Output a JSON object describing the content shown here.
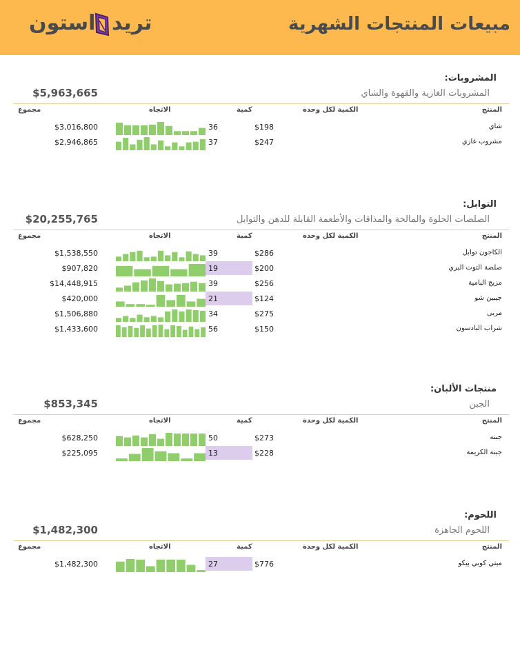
{
  "header": {
    "title": "مبيعات المنتجات الشهرية",
    "logo_text_left": "استون",
    "logo_text_right": "تريد",
    "accent": "#fdb94e"
  },
  "columns": {
    "total": "مجموع",
    "trend": "الاتجاه",
    "qty": "كمية",
    "price": "الكمية لكل وحدة",
    "product": "المنتج"
  },
  "colors": {
    "spark": "#8fce6a",
    "low_qty": "#dccdec"
  },
  "sections": [
    {
      "name": "المشروبات:",
      "description": "المشروبات الغازية والقهوة والشاي",
      "total": "$5,963,665",
      "rows": [
        {
          "total": "$3,016,800",
          "qty": "36",
          "price": "$198",
          "product": "شاي",
          "low": false,
          "trend": [
            0.95,
            0.75,
            0.75,
            0.75,
            0.8,
            1.0,
            0.7,
            0.3,
            0.3,
            0.3,
            0.55
          ]
        },
        {
          "total": "$2,946,865",
          "qty": "37",
          "price": "$247",
          "product": "مشروب غازي",
          "low": false,
          "trend": [
            0.65,
            0.95,
            0.45,
            0.8,
            1.0,
            0.45,
            0.75,
            0.3,
            0.6,
            0.3,
            0.6,
            0.65,
            0.85
          ]
        }
      ]
    },
    {
      "name": "التوابل:",
      "description": "الصلصات الحلوة والمالحة والمذاقات والأطعمة القابلة للدهن والتوابل",
      "total": "$20,255,765",
      "rows": [
        {
          "total": "$1,538,550",
          "qty": "39",
          "price": "$286",
          "product": "الكاجون توابل",
          "low": false,
          "trend": [
            0.35,
            0.55,
            0.7,
            0.8,
            0.3,
            0.35,
            0.8,
            0.45,
            0.7,
            0.3,
            0.75,
            0.55,
            0.45
          ]
        },
        {
          "total": "$907,820",
          "qty": "19",
          "price": "$200",
          "product": "صلصة التوت البري",
          "low": true,
          "trend": [
            0.8,
            0.55,
            0.8,
            0.55,
            0.95
          ]
        },
        {
          "total": "$14,448,915",
          "qty": "39",
          "price": "$256",
          "product": "مزيج البامية",
          "low": false,
          "trend": [
            0.3,
            0.45,
            0.7,
            0.85,
            1.0,
            0.8,
            0.55,
            0.6,
            0.65,
            0.75,
            0.65
          ]
        },
        {
          "total": "$420,000",
          "qty": "21",
          "price": "$124",
          "product": "جيبين شو",
          "low": true,
          "trend": [
            0.4,
            0.2,
            0.2,
            0.15,
            0.9,
            0.5,
            0.9,
            0.4,
            0.6
          ]
        },
        {
          "total": "$1,506,880",
          "qty": "34",
          "price": "$275",
          "product": "مربى",
          "low": false,
          "trend": [
            0.3,
            0.45,
            0.3,
            0.55,
            0.35,
            0.45,
            0.35,
            0.8,
            0.95,
            0.8,
            0.95,
            0.9,
            0.85
          ]
        },
        {
          "total": "$1,433,600",
          "qty": "56",
          "price": "$150",
          "product": "شراب البادسون",
          "low": false,
          "trend": [
            0.9,
            0.75,
            0.85,
            0.7,
            0.9,
            0.65,
            0.9,
            0.95,
            0.6,
            0.9,
            0.85,
            0.55,
            0.8,
            0.6,
            0.75
          ]
        }
      ]
    },
    {
      "name": "منتجات الألبان:",
      "description": "الجبن",
      "total": "$853,345",
      "rows": [
        {
          "total": "$628,250",
          "qty": "50",
          "price": "$273",
          "product": "جبنه",
          "low": false,
          "trend": [
            0.75,
            0.65,
            0.8,
            0.65,
            0.9,
            0.55,
            1.0,
            0.95,
            0.95,
            0.95,
            0.95
          ]
        },
        {
          "total": "$225,095",
          "qty": "13",
          "price": "$228",
          "product": "جبنة الكريمة",
          "low": true,
          "trend": [
            0.2,
            0.55,
            1.0,
            0.75,
            0.6,
            0.2,
            0.6
          ]
        }
      ]
    },
    {
      "name": "اللحوم:",
      "description": "اللحوم الجاهزة",
      "total": "$1,482,300",
      "rows": [
        {
          "total": "$1,482,300",
          "qty": "27",
          "price": "$776",
          "product": "ميتي كوبي بيكو",
          "low": true,
          "trend": [
            0.8,
            1.0,
            0.95,
            0.45,
            0.95,
            0.95,
            0.95,
            0.55,
            0.15
          ]
        }
      ]
    }
  ]
}
